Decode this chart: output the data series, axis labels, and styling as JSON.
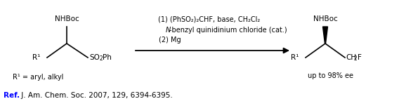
{
  "background_color": "#ffffff",
  "ref_bold": "Ref.",
  "ref_text": " J. Am. Chem. Soc. 2007, 129, 6394-6395.",
  "ref_color_bold": "#0000ff",
  "ref_color_normal": "#000000",
  "condition_line1": "(1) (PhSO₂)₂CHF, base, CH₂Cl₂",
  "condition_line2_italic": "N",
  "condition_line2_rest": "-benzyl quinidinium chloride (cat.)",
  "condition_line3": "(2) Mg",
  "reactant_label": "R¹ = aryl, alkyl",
  "ee_label": "up to 98% ee",
  "figsize": [
    5.68,
    1.51
  ],
  "dpi": 100
}
